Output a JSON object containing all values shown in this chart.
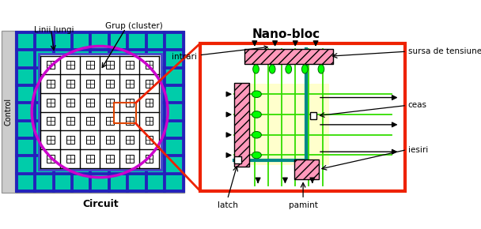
{
  "title_left": "Circuit",
  "title_right": "Nano-bloc",
  "label_control": "Control",
  "label_linii_lungi": "Linii lungi",
  "label_grup": "Grup (cluster)",
  "label_intrari": "intrari",
  "label_sursa": "sursa de tensiune",
  "label_ceas": "ceas",
  "label_iesiri": "iesiri",
  "label_latch": "latch",
  "label_pamint": "pamint",
  "cyan_tile": "#00ccaa",
  "blue_line": "#2222bb",
  "purple_ellipse": "#cc00cc",
  "logic_blue_border": "#4444cc",
  "nano_red": "#ee2200",
  "teal_line": "#008888",
  "hatch_fill": "#ff99bb",
  "green_bright": "#00ff00",
  "green_line": "#33dd00"
}
